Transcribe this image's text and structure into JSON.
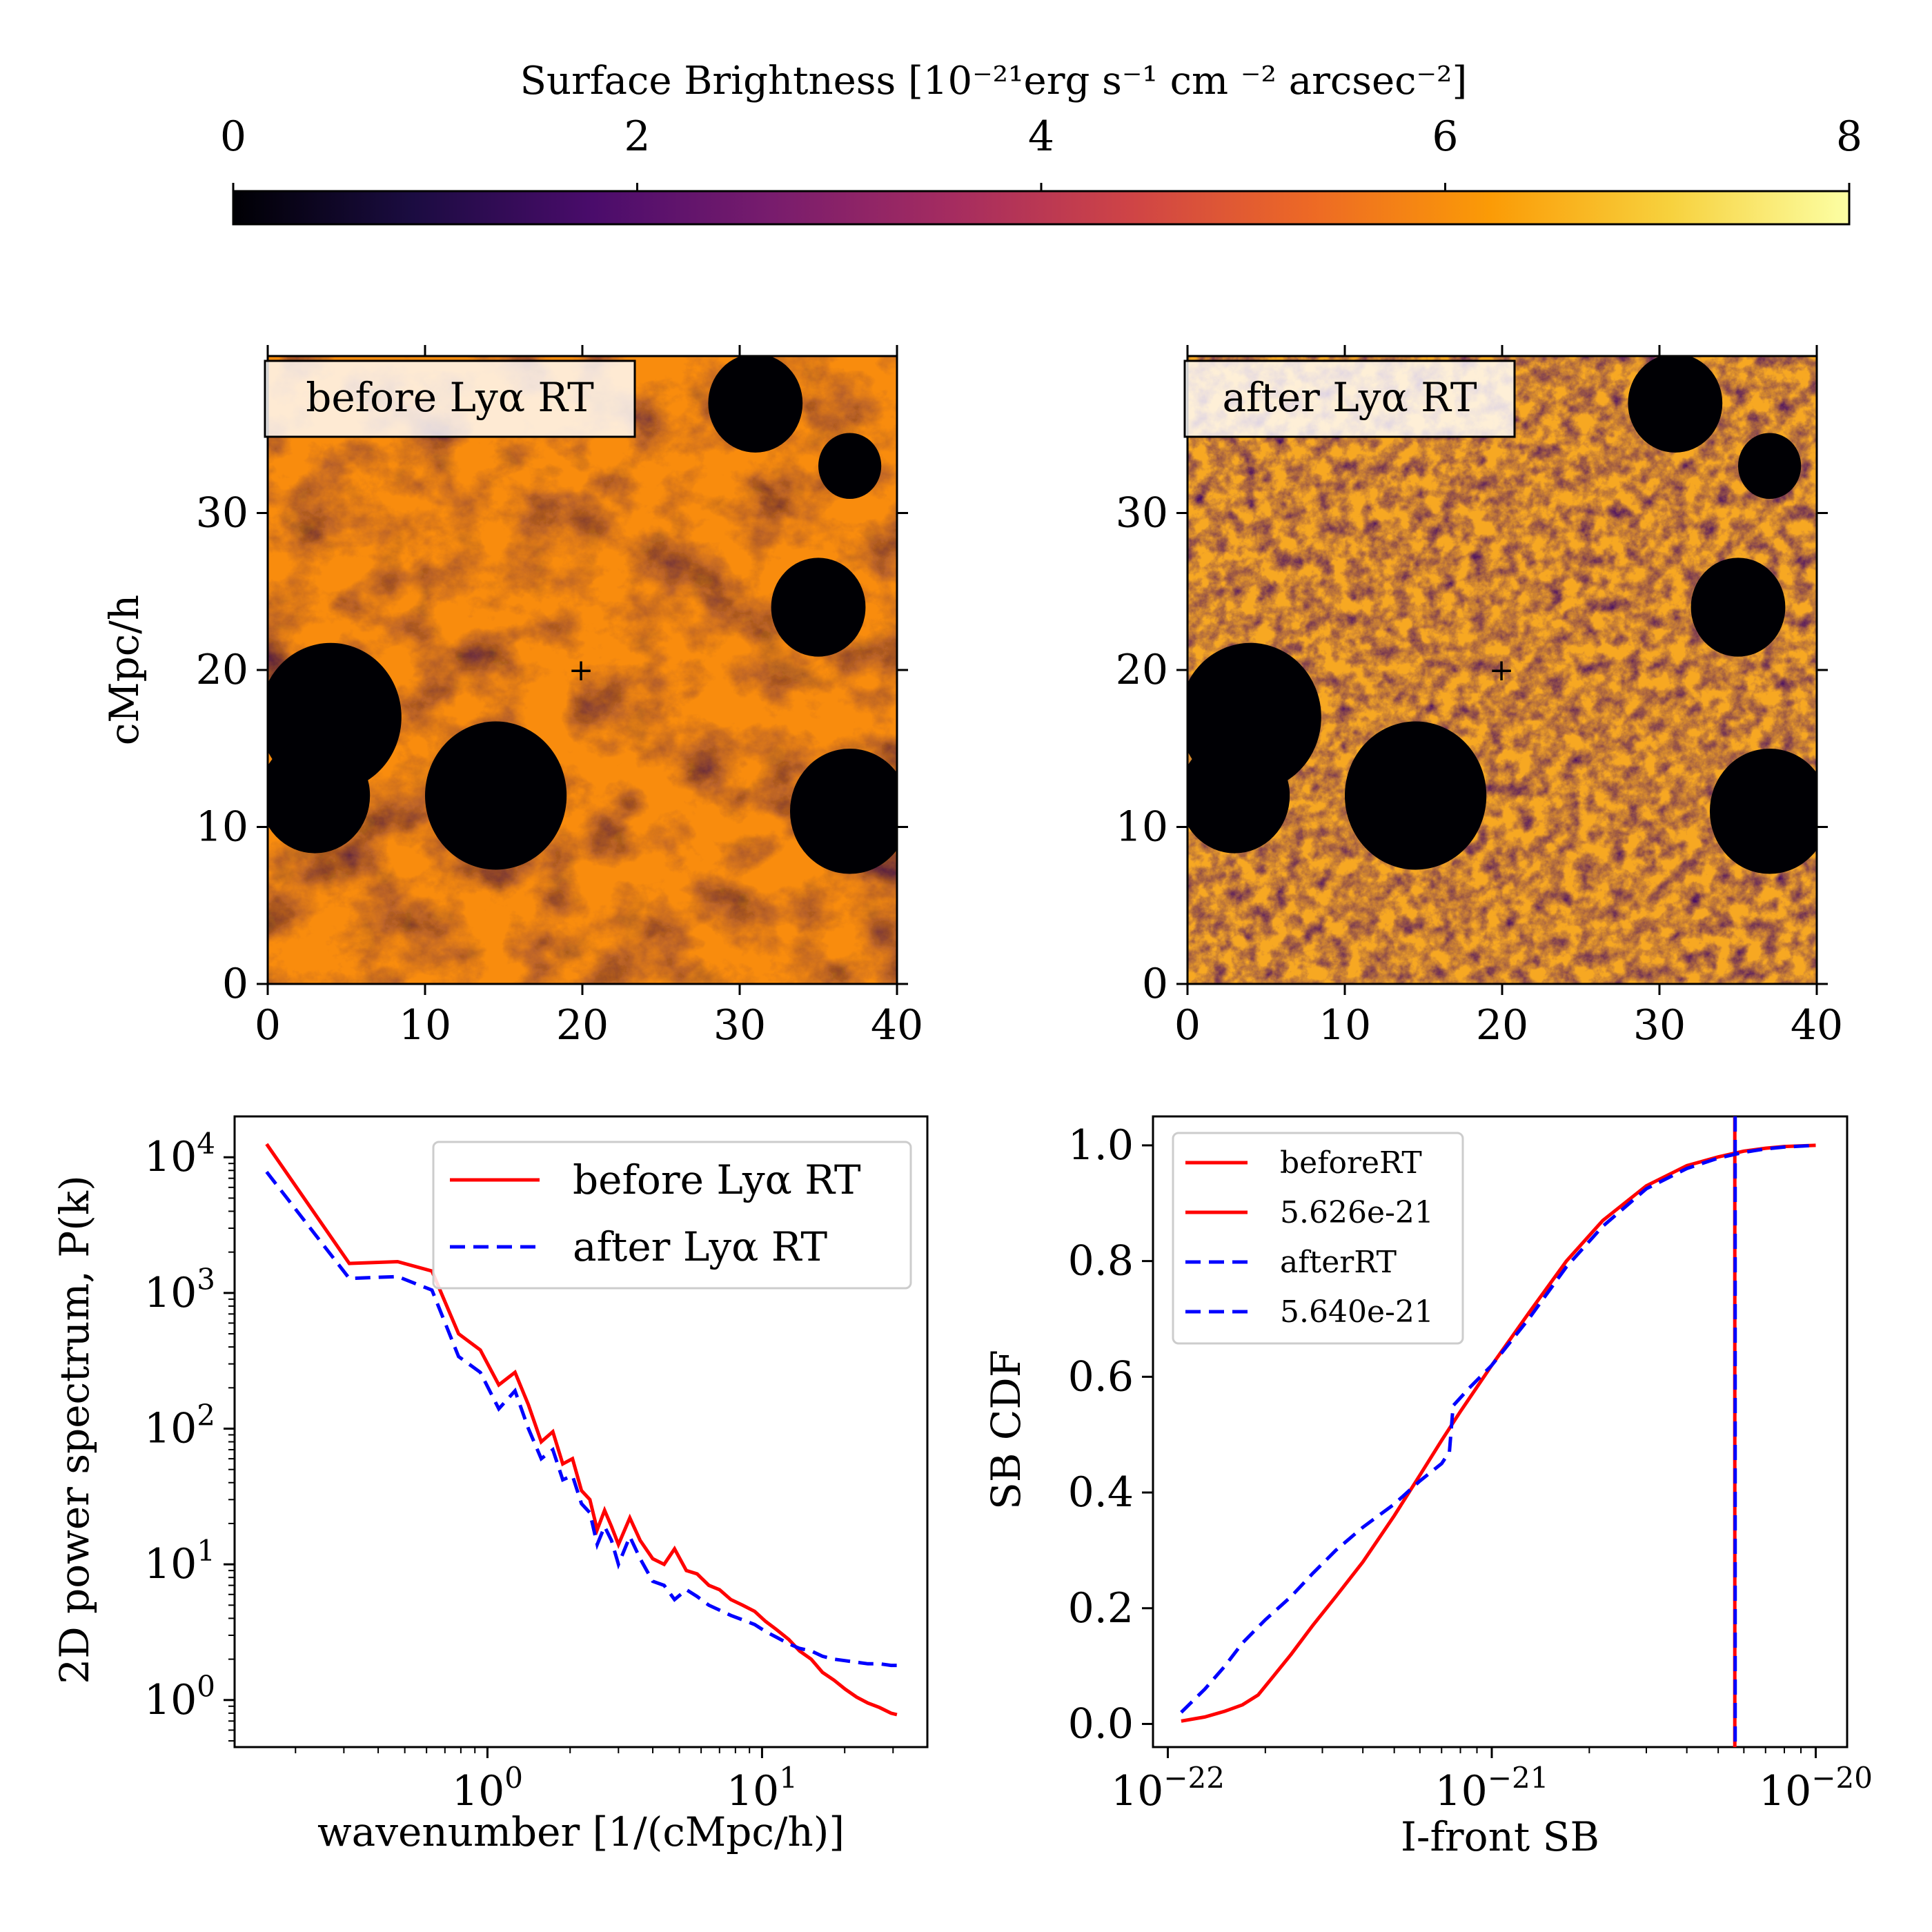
{
  "colorbar": {
    "label": "Surface Brightness [10⁻²¹erg s⁻¹ cm ⁻² arcsec⁻²]",
    "ticks": [
      "0",
      "2",
      "4",
      "6",
      "8"
    ],
    "range": [
      0,
      8
    ],
    "colormap": "inferno",
    "stops": [
      "#000004",
      "#1b0c41",
      "#4a0c6b",
      "#781c6d",
      "#a52c60",
      "#cf4446",
      "#ed6925",
      "#fb9b06",
      "#f7d13d",
      "#fcffa4"
    ]
  },
  "chart_data": [
    {
      "type": "heatmap",
      "panel": "top-left",
      "label": "before Lyα RT",
      "label_color": "#ff0000",
      "ylabel": "cMpc/h",
      "xlim": [
        0,
        40
      ],
      "ylim": [
        0,
        40
      ],
      "xticks": [
        "0",
        "10",
        "20",
        "30",
        "40"
      ],
      "yticks": [
        "0",
        "10",
        "20",
        "30"
      ],
      "marker": {
        "x": 20,
        "y": 20,
        "symbol": "+",
        "color": "#ff0000"
      },
      "voids": [
        [
          4,
          17,
          4.5
        ],
        [
          3,
          12,
          3.5
        ],
        [
          14.5,
          12,
          4.5
        ],
        [
          37,
          11,
          3.8
        ],
        [
          35,
          24,
          3
        ],
        [
          31,
          37,
          3
        ],
        [
          37,
          33,
          2
        ]
      ]
    },
    {
      "type": "heatmap",
      "panel": "top-right",
      "label": "after Lyα RT",
      "label_color": "#0000ff",
      "xlim": [
        0,
        40
      ],
      "ylim": [
        0,
        40
      ],
      "xticks": [
        "0",
        "10",
        "20",
        "30",
        "40"
      ],
      "yticks": [
        "0",
        "10",
        "20",
        "30"
      ],
      "marker": {
        "x": 20,
        "y": 20,
        "symbol": "+",
        "color": "#ff0000"
      },
      "voids": [
        [
          4,
          17,
          4.5
        ],
        [
          3,
          12,
          3.5
        ],
        [
          14.5,
          12,
          4.5
        ],
        [
          37,
          11,
          3.8
        ],
        [
          35,
          24,
          3
        ],
        [
          31,
          37,
          3
        ],
        [
          37,
          33,
          2
        ]
      ]
    },
    {
      "type": "line",
      "panel": "bottom-left",
      "xlabel": "wavenumber [1/(cMpc/h)]",
      "ylabel": "2D power spectrum, P(k)",
      "xscale": "log",
      "yscale": "log",
      "xlim": [
        0.12,
        40
      ],
      "ylim": [
        0.45,
        20000
      ],
      "xticks": [
        {
          "value": 1,
          "base": "10",
          "exp": "0"
        },
        {
          "value": 10,
          "base": "10",
          "exp": "1"
        }
      ],
      "yticks": [
        {
          "value": 1,
          "base": "10",
          "exp": "0"
        },
        {
          "value": 10,
          "base": "10",
          "exp": "1"
        },
        {
          "value": 100,
          "base": "10",
          "exp": "2"
        },
        {
          "value": 1000,
          "base": "10",
          "exp": "3"
        },
        {
          "value": 10000,
          "base": "10",
          "exp": "4"
        }
      ],
      "legend": "top-right",
      "series": [
        {
          "name": "before Lyα RT",
          "color": "#ff0000",
          "dash": "solid",
          "x": [
            0.157,
            0.314,
            0.471,
            0.628,
            0.785,
            0.942,
            1.1,
            1.26,
            1.41,
            1.57,
            1.73,
            1.88,
            2.04,
            2.2,
            2.36,
            2.51,
            2.67,
            2.83,
            3.0,
            3.3,
            3.6,
            4.0,
            4.4,
            4.8,
            5.3,
            5.8,
            6.4,
            7.0,
            7.7,
            8.5,
            9.4,
            10.3,
            11.3,
            12.5,
            13.7,
            15.1,
            16.6,
            18.3,
            20.1,
            22.1,
            24.3,
            26.8,
            29.5,
            31.0
          ],
          "y": [
            12500,
            1650,
            1700,
            1450,
            500,
            380,
            210,
            260,
            150,
            80,
            95,
            55,
            60,
            35,
            30,
            18,
            25,
            19,
            14,
            22,
            15,
            11,
            10,
            13,
            9,
            8.5,
            7,
            6.5,
            5.5,
            5,
            4.5,
            3.8,
            3.3,
            2.8,
            2.3,
            2.0,
            1.6,
            1.4,
            1.2,
            1.05,
            0.95,
            0.88,
            0.8,
            0.78
          ]
        },
        {
          "name": "after Lyα RT",
          "color": "#0000ff",
          "dash": "dashed",
          "x": [
            0.157,
            0.314,
            0.471,
            0.628,
            0.785,
            0.942,
            1.1,
            1.26,
            1.41,
            1.57,
            1.73,
            1.88,
            2.04,
            2.2,
            2.36,
            2.51,
            2.67,
            2.83,
            3.0,
            3.3,
            3.6,
            4.0,
            4.4,
            4.8,
            5.3,
            5.8,
            6.4,
            7.0,
            7.7,
            8.5,
            9.4,
            10.3,
            11.3,
            12.5,
            13.7,
            15.1,
            16.6,
            18.3,
            20.1,
            22.1,
            24.3,
            26.8,
            29.5,
            31.0
          ],
          "y": [
            7800,
            1280,
            1320,
            1050,
            340,
            260,
            140,
            190,
            100,
            60,
            70,
            42,
            45,
            28,
            24,
            14,
            19,
            15,
            10,
            16,
            11,
            7.5,
            7,
            5.5,
            6.5,
            5.8,
            5,
            4.6,
            4.2,
            3.9,
            3.6,
            3.2,
            2.9,
            2.6,
            2.4,
            2.3,
            2.1,
            2.0,
            1.95,
            1.9,
            1.85,
            1.85,
            1.8,
            1.8
          ]
        }
      ]
    },
    {
      "type": "line",
      "panel": "bottom-right",
      "xlabel": "I-front SB",
      "ylabel": "SB CDF",
      "xscale": "log",
      "xlim": [
        9e-23,
        1.25e-20
      ],
      "ylim": [
        -0.04,
        1.05
      ],
      "xticks": [
        {
          "value": 1e-22,
          "base": "10",
          "exp": "−22"
        },
        {
          "value": 1e-21,
          "base": "10",
          "exp": "−21"
        },
        {
          "value": 1e-20,
          "base": "10",
          "exp": "−20"
        }
      ],
      "yticks": [
        "0.0",
        "0.2",
        "0.4",
        "0.6",
        "0.8",
        "1.0"
      ],
      "legend": "top-left",
      "series": [
        {
          "name": "beforeRT",
          "color": "#ff0000",
          "dash": "solid",
          "x": [
            1.1e-22,
            1.3e-22,
            1.5e-22,
            1.7e-22,
            1.9e-22,
            2.1e-22,
            2.4e-22,
            2.8e-22,
            3.3e-22,
            4e-22,
            5e-22,
            6e-22,
            7e-22,
            8e-22,
            1e-21,
            1.3e-21,
            1.7e-21,
            2.2e-21,
            3e-21,
            4e-21,
            5e-21,
            6e-21,
            7e-21,
            8e-21,
            1e-20
          ],
          "y": [
            0.005,
            0.012,
            0.022,
            0.033,
            0.05,
            0.08,
            0.12,
            0.17,
            0.22,
            0.28,
            0.36,
            0.43,
            0.49,
            0.54,
            0.62,
            0.71,
            0.8,
            0.87,
            0.93,
            0.965,
            0.98,
            0.99,
            0.995,
            0.998,
            1.0
          ]
        },
        {
          "name": "5.626e-21",
          "color": "#ff0000",
          "dash": "solid",
          "vline": 5.626e-21
        },
        {
          "name": "afterRT",
          "color": "#0000ff",
          "dash": "dashed",
          "x": [
            1.1e-22,
            1.3e-22,
            1.5e-22,
            1.7e-22,
            2e-22,
            2.4e-22,
            2.8e-22,
            3.3e-22,
            4e-22,
            5e-22,
            6e-22,
            7e-22,
            7.4e-22,
            7.6e-22,
            8.5e-22,
            1e-21,
            1.3e-21,
            1.7e-21,
            2.2e-21,
            3e-21,
            4e-21,
            5e-21,
            6e-21,
            7e-21,
            8e-21,
            1e-20
          ],
          "y": [
            0.02,
            0.06,
            0.1,
            0.14,
            0.18,
            0.22,
            0.26,
            0.3,
            0.34,
            0.38,
            0.42,
            0.45,
            0.47,
            0.55,
            0.58,
            0.62,
            0.7,
            0.79,
            0.86,
            0.925,
            0.96,
            0.978,
            0.988,
            0.994,
            0.997,
            1.0
          ]
        },
        {
          "name": "5.640e-21",
          "color": "#0000ff",
          "dash": "dashed",
          "vline": 5.64e-21
        }
      ]
    }
  ]
}
